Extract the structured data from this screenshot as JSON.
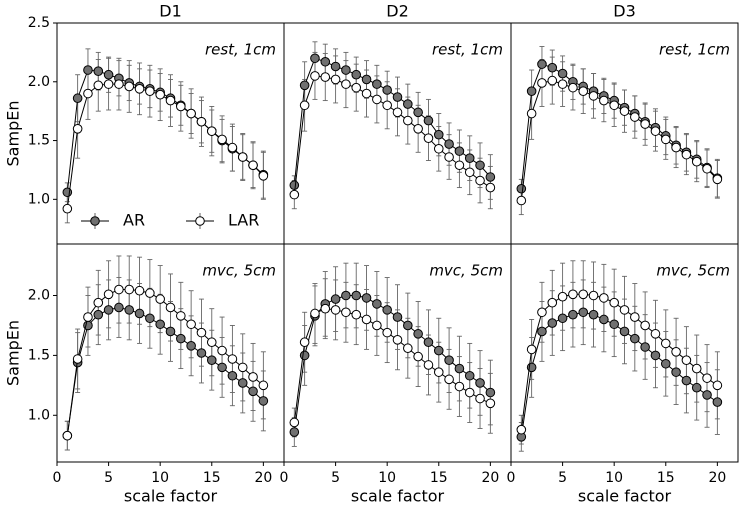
{
  "chart_data": [
    {
      "type": "line",
      "title": "D1",
      "annotation": "rest, 1cm",
      "ylabel": "SampEn",
      "legend": "lower left",
      "x": [
        1,
        2,
        3,
        4,
        5,
        6,
        7,
        8,
        9,
        10,
        11,
        12,
        13,
        14,
        15,
        16,
        17,
        18,
        19,
        20
      ],
      "xlim": [
        0,
        22
      ],
      "ylim": [
        0.62,
        2.5
      ],
      "yticks": [
        {
          "value": 1,
          "label": "1.0"
        },
        1.5,
        {
          "value": 2,
          "label": "2.0"
        },
        2.5
      ],
      "series": [
        {
          "name": "AR",
          "color": "#707070",
          "values": [
            1.06,
            1.86,
            2.1,
            2.09,
            2.06,
            2.03,
            1.99,
            1.96,
            1.94,
            1.91,
            1.86,
            1.8,
            1.73,
            1.66,
            1.58,
            1.5,
            1.43,
            1.36,
            1.29,
            1.21
          ],
          "errors": [
            0.08,
            0.2,
            0.18,
            0.16,
            0.15,
            0.15,
            0.15,
            0.15,
            0.16,
            0.16,
            0.16,
            0.17,
            0.17,
            0.18,
            0.18,
            0.18,
            0.19,
            0.19,
            0.19,
            0.2
          ]
        },
        {
          "name": "LAR",
          "color": "#ffffff",
          "values": [
            0.92,
            1.6,
            1.9,
            1.97,
            1.98,
            1.98,
            1.96,
            1.94,
            1.92,
            1.89,
            1.84,
            1.79,
            1.73,
            1.66,
            1.58,
            1.51,
            1.44,
            1.36,
            1.29,
            1.2
          ],
          "errors": [
            0.12,
            0.25,
            0.22,
            0.22,
            0.22,
            0.22,
            0.22,
            0.22,
            0.22,
            0.22,
            0.22,
            0.21,
            0.21,
            0.21,
            0.21,
            0.2,
            0.2,
            0.2,
            0.2,
            0.2
          ]
        }
      ]
    },
    {
      "type": "line",
      "title": "D2",
      "annotation": "rest, 1cm",
      "x": [
        1,
        2,
        3,
        4,
        5,
        6,
        7,
        8,
        9,
        10,
        11,
        12,
        13,
        14,
        15,
        16,
        17,
        18,
        19,
        20
      ],
      "xlim": [
        0,
        22
      ],
      "ylim": [
        0.62,
        2.5
      ],
      "series": [
        {
          "color": "#707070",
          "values": [
            1.12,
            1.97,
            2.2,
            2.17,
            2.13,
            2.1,
            2.06,
            2.02,
            1.98,
            1.93,
            1.87,
            1.81,
            1.74,
            1.67,
            1.55,
            1.47,
            1.41,
            1.35,
            1.29,
            1.19
          ],
          "errors": [
            0.08,
            0.2,
            0.14,
            0.15,
            0.15,
            0.15,
            0.15,
            0.16,
            0.16,
            0.16,
            0.17,
            0.17,
            0.17,
            0.18,
            0.18,
            0.18,
            0.18,
            0.19,
            0.19,
            0.19
          ]
        },
        {
          "color": "#ffffff",
          "values": [
            1.04,
            1.8,
            2.05,
            2.04,
            2.02,
            1.98,
            1.95,
            1.9,
            1.85,
            1.8,
            1.74,
            1.67,
            1.6,
            1.52,
            1.43,
            1.36,
            1.29,
            1.23,
            1.16,
            1.1
          ],
          "errors": [
            0.12,
            0.22,
            0.2,
            0.2,
            0.2,
            0.2,
            0.2,
            0.2,
            0.2,
            0.2,
            0.2,
            0.2,
            0.2,
            0.19,
            0.19,
            0.19,
            0.19,
            0.19,
            0.19,
            0.18
          ]
        }
      ]
    },
    {
      "type": "line",
      "title": "D3",
      "annotation": "rest, 1cm",
      "x": [
        1,
        2,
        3,
        4,
        5,
        6,
        7,
        8,
        9,
        10,
        11,
        12,
        13,
        14,
        15,
        16,
        17,
        18,
        19,
        20
      ],
      "xlim": [
        0,
        22
      ],
      "ylim": [
        0.62,
        2.5
      ],
      "series": [
        {
          "color": "#707070",
          "values": [
            1.09,
            1.92,
            2.15,
            2.12,
            2.07,
            2.0,
            1.96,
            1.92,
            1.88,
            1.84,
            1.78,
            1.73,
            1.66,
            1.61,
            1.54,
            1.46,
            1.4,
            1.34,
            1.27,
            1.18
          ],
          "errors": [
            0.08,
            0.18,
            0.15,
            0.15,
            0.15,
            0.15,
            0.15,
            0.15,
            0.15,
            0.15,
            0.15,
            0.15,
            0.15,
            0.16,
            0.16,
            0.16,
            0.16,
            0.16,
            0.16,
            0.16
          ]
        },
        {
          "color": "#ffffff",
          "values": [
            0.99,
            1.73,
            1.99,
            2.01,
            1.98,
            1.95,
            1.92,
            1.88,
            1.84,
            1.8,
            1.75,
            1.7,
            1.64,
            1.58,
            1.51,
            1.44,
            1.38,
            1.32,
            1.26,
            1.17
          ],
          "errors": [
            0.12,
            0.22,
            0.2,
            0.2,
            0.19,
            0.19,
            0.19,
            0.19,
            0.18,
            0.18,
            0.18,
            0.18,
            0.18,
            0.17,
            0.17,
            0.17,
            0.17,
            0.17,
            0.16,
            0.16
          ]
        }
      ]
    },
    {
      "type": "line",
      "annotation": "mvc, 5cm",
      "ylabel": "SampEn",
      "xlabel": "scale factor",
      "x": [
        1,
        2,
        3,
        4,
        5,
        6,
        7,
        8,
        9,
        10,
        11,
        12,
        13,
        14,
        15,
        16,
        17,
        18,
        19,
        20
      ],
      "xlim": [
        0,
        22
      ],
      "xticks": [
        0,
        5,
        10,
        15,
        20
      ],
      "ylim": [
        0.61,
        2.43
      ],
      "yticks": [
        {
          "value": 1,
          "label": "1.0"
        },
        1.5,
        {
          "value": 2,
          "label": "2.0"
        }
      ],
      "series": [
        {
          "color": "#707070",
          "values": [
            0.83,
            1.44,
            1.75,
            1.84,
            1.88,
            1.9,
            1.88,
            1.85,
            1.81,
            1.76,
            1.7,
            1.64,
            1.58,
            1.52,
            1.46,
            1.4,
            1.33,
            1.27,
            1.2,
            1.12
          ],
          "errors": [
            0.12,
            0.25,
            0.25,
            0.25,
            0.25,
            0.25,
            0.25,
            0.25,
            0.25,
            0.25,
            0.25,
            0.25,
            0.25,
            0.25,
            0.25,
            0.25,
            0.25,
            0.25,
            0.25,
            0.25
          ]
        },
        {
          "color": "#ffffff",
          "values": [
            0.83,
            1.47,
            1.82,
            1.94,
            2.01,
            2.05,
            2.05,
            2.04,
            2.02,
            1.97,
            1.9,
            1.83,
            1.76,
            1.69,
            1.61,
            1.54,
            1.47,
            1.4,
            1.32,
            1.25
          ],
          "errors": [
            0.12,
            0.25,
            0.25,
            0.27,
            0.28,
            0.28,
            0.28,
            0.28,
            0.28,
            0.28,
            0.28,
            0.28,
            0.28,
            0.28,
            0.28,
            0.28,
            0.28,
            0.28,
            0.28,
            0.28
          ]
        }
      ]
    },
    {
      "type": "line",
      "annotation": "mvc, 5cm",
      "xlabel": "scale factor",
      "x": [
        1,
        2,
        3,
        4,
        5,
        6,
        7,
        8,
        9,
        10,
        11,
        12,
        13,
        14,
        15,
        16,
        17,
        18,
        19,
        20
      ],
      "xlim": [
        0,
        22
      ],
      "xticks": [
        0,
        5,
        10,
        15,
        20
      ],
      "ylim": [
        0.61,
        2.43
      ],
      "series": [
        {
          "color": "#707070",
          "values": [
            0.86,
            1.5,
            1.83,
            1.93,
            1.97,
            2.0,
            2.0,
            1.98,
            1.93,
            1.88,
            1.82,
            1.75,
            1.68,
            1.61,
            1.54,
            1.46,
            1.39,
            1.33,
            1.27,
            1.19
          ],
          "errors": [
            0.12,
            0.25,
            0.25,
            0.27,
            0.27,
            0.27,
            0.27,
            0.27,
            0.27,
            0.27,
            0.27,
            0.27,
            0.27,
            0.27,
            0.27,
            0.27,
            0.27,
            0.27,
            0.27,
            0.27
          ]
        },
        {
          "color": "#ffffff",
          "values": [
            0.94,
            1.61,
            1.85,
            1.89,
            1.88,
            1.86,
            1.84,
            1.8,
            1.75,
            1.69,
            1.63,
            1.56,
            1.49,
            1.42,
            1.36,
            1.3,
            1.24,
            1.19,
            1.14,
            1.1
          ],
          "errors": [
            0.12,
            0.25,
            0.25,
            0.25,
            0.25,
            0.25,
            0.25,
            0.25,
            0.25,
            0.25,
            0.25,
            0.25,
            0.25,
            0.25,
            0.25,
            0.25,
            0.25,
            0.25,
            0.25,
            0.25
          ]
        }
      ]
    },
    {
      "type": "line",
      "annotation": "mvc, 5cm",
      "xlabel": "scale factor",
      "x": [
        1,
        2,
        3,
        4,
        5,
        6,
        7,
        8,
        9,
        10,
        11,
        12,
        13,
        14,
        15,
        16,
        17,
        18,
        19,
        20
      ],
      "xlim": [
        0,
        22
      ],
      "xticks": [
        0,
        5,
        10,
        15,
        20
      ],
      "ylim": [
        0.61,
        2.43
      ],
      "series": [
        {
          "color": "#707070",
          "values": [
            0.82,
            1.4,
            1.7,
            1.77,
            1.81,
            1.84,
            1.86,
            1.84,
            1.8,
            1.76,
            1.7,
            1.64,
            1.57,
            1.5,
            1.43,
            1.36,
            1.29,
            1.23,
            1.17,
            1.11
          ],
          "errors": [
            0.12,
            0.25,
            0.25,
            0.27,
            0.27,
            0.27,
            0.27,
            0.27,
            0.27,
            0.27,
            0.27,
            0.27,
            0.27,
            0.27,
            0.27,
            0.27,
            0.27,
            0.27,
            0.27,
            0.27
          ]
        },
        {
          "color": "#ffffff",
          "values": [
            0.88,
            1.55,
            1.86,
            1.94,
            1.99,
            2.01,
            2.01,
            2.0,
            1.98,
            1.94,
            1.88,
            1.82,
            1.75,
            1.68,
            1.6,
            1.53,
            1.46,
            1.39,
            1.31,
            1.25
          ],
          "errors": [
            0.12,
            0.25,
            0.25,
            0.27,
            0.28,
            0.28,
            0.28,
            0.28,
            0.28,
            0.28,
            0.28,
            0.28,
            0.28,
            0.28,
            0.28,
            0.28,
            0.28,
            0.28,
            0.28,
            0.28
          ]
        }
      ]
    }
  ]
}
